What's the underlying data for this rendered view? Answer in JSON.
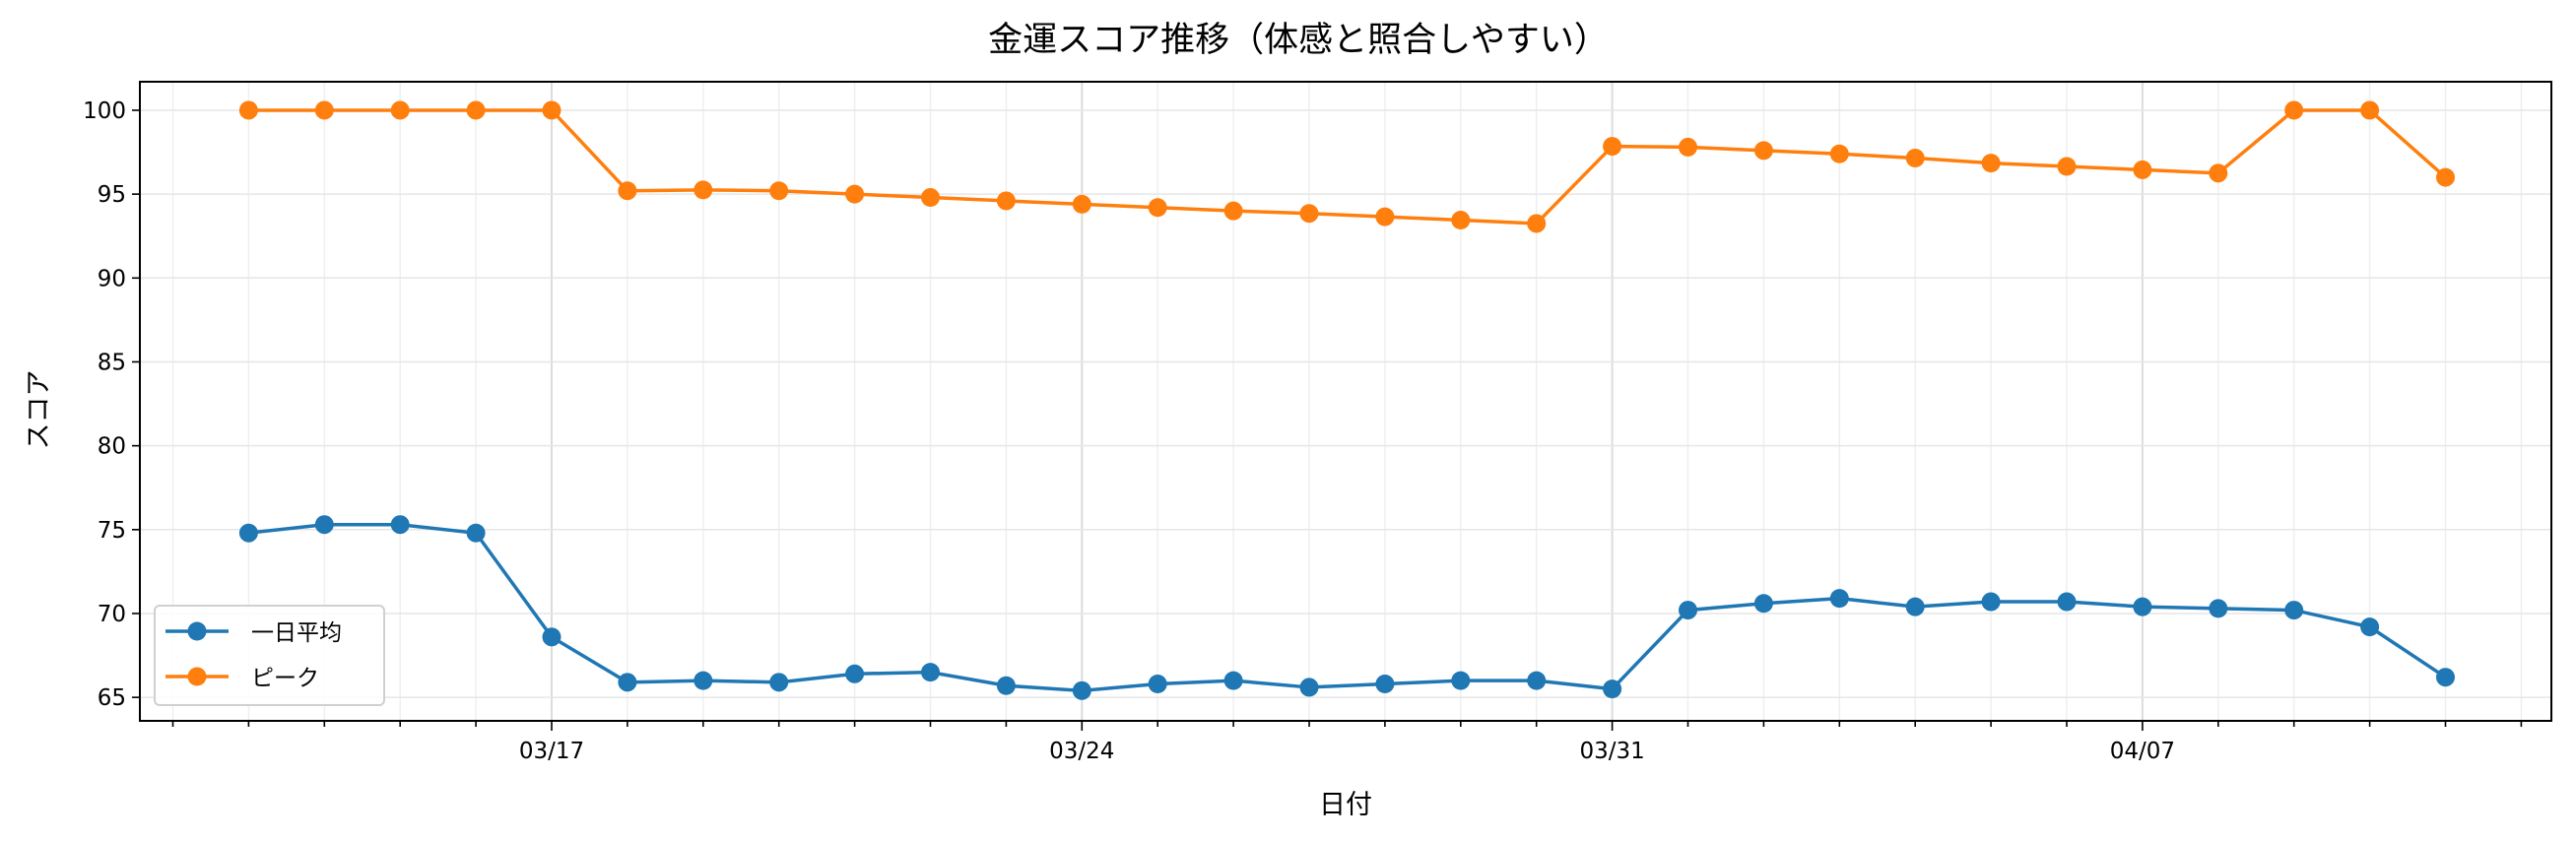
{
  "chart_data": {
    "type": "line",
    "title": "金運スコア推移（体感と照合しやすい）",
    "xlabel": "日付",
    "ylabel": "スコア",
    "x": [
      "03/13",
      "03/14",
      "03/15",
      "03/16",
      "03/17",
      "03/18",
      "03/19",
      "03/20",
      "03/21",
      "03/22",
      "03/23",
      "03/24",
      "03/25",
      "03/26",
      "03/27",
      "03/28",
      "03/29",
      "03/30",
      "03/31",
      "04/01",
      "04/02",
      "04/03",
      "04/04",
      "04/05",
      "04/06",
      "04/07",
      "04/08",
      "04/09",
      "04/10",
      "04/11"
    ],
    "xticks": [
      "03/17",
      "03/24",
      "03/31",
      "04/07"
    ],
    "yticks": [
      65,
      70,
      75,
      80,
      85,
      90,
      95,
      100
    ],
    "ylim": [
      63.6,
      101.7
    ],
    "grid": true,
    "legend": "lower-left",
    "series": [
      {
        "name": "一日平均",
        "color": "#1f77b4",
        "values": [
          74.8,
          75.3,
          75.3,
          74.8,
          68.6,
          65.9,
          66.0,
          65.9,
          66.4,
          66.5,
          65.7,
          65.4,
          65.8,
          66.0,
          65.6,
          65.8,
          66.0,
          66.0,
          65.5,
          70.2,
          70.6,
          70.9,
          70.4,
          70.7,
          70.7,
          70.4,
          70.3,
          70.2,
          69.2,
          66.2
        ]
      },
      {
        "name": "ピーク",
        "color": "#ff7f0e",
        "values": [
          100,
          100,
          100,
          100,
          100,
          95.2,
          95.25,
          95.2,
          95.0,
          94.8,
          94.6,
          94.4,
          94.2,
          94.0,
          93.85,
          93.65,
          93.45,
          93.25,
          97.85,
          97.8,
          97.6,
          97.4,
          97.15,
          96.85,
          96.65,
          96.45,
          96.25,
          100,
          100,
          96.0
        ]
      }
    ]
  }
}
